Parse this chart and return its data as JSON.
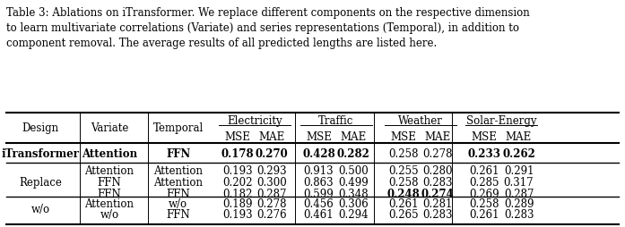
{
  "caption": "Table 3: Ablations on iTransformer. We replace different components on the respective dimension\nto learn multivariate correlations (Variate) and series representations (Temporal), in addition to\ncomponent removal. The average results of all predicted lengths are listed here.",
  "header_groups": [
    "Electricity",
    "Traffic",
    "Weather",
    "Solar-Energy"
  ],
  "subheaders": [
    "MSE",
    "MAE"
  ],
  "col_headers": [
    "Design",
    "Variate",
    "Temporal",
    "MSE",
    "MAE",
    "MSE",
    "MAE",
    "MSE",
    "MAE",
    "MSE",
    "MAE"
  ],
  "rows": [
    {
      "group": "iTransformer",
      "variate": "Attention",
      "temporal": "FFN",
      "values": [
        "0.178",
        "0.270",
        "0.428",
        "0.282",
        "0.258",
        "0.278",
        "0.233",
        "0.262"
      ],
      "bold": [
        true,
        true,
        true,
        true,
        false,
        false,
        true,
        true
      ],
      "row_bold": true
    },
    {
      "group": "Replace",
      "variate": "Attention",
      "temporal": "Attention",
      "values": [
        "0.193",
        "0.293",
        "0.913",
        "0.500",
        "0.255",
        "0.280",
        "0.261",
        "0.291"
      ],
      "bold": [
        false,
        false,
        false,
        false,
        false,
        false,
        false,
        false
      ],
      "row_bold": false
    },
    {
      "group": "",
      "variate": "FFN",
      "temporal": "Attention",
      "values": [
        "0.202",
        "0.300",
        "0.863",
        "0.499",
        "0.258",
        "0.283",
        "0.285",
        "0.317"
      ],
      "bold": [
        false,
        false,
        false,
        false,
        false,
        false,
        false,
        false
      ],
      "row_bold": false
    },
    {
      "group": "",
      "variate": "FFN",
      "temporal": "FFN",
      "values": [
        "0.182",
        "0.287",
        "0.599",
        "0.348",
        "0.248",
        "0.274",
        "0.269",
        "0.287"
      ],
      "bold": [
        false,
        false,
        false,
        false,
        true,
        true,
        false,
        false
      ],
      "row_bold": false
    },
    {
      "group": "w/o",
      "variate": "Attention",
      "temporal": "w/o",
      "values": [
        "0.189",
        "0.278",
        "0.456",
        "0.306",
        "0.261",
        "0.281",
        "0.258",
        "0.289"
      ],
      "bold": [
        false,
        false,
        false,
        false,
        false,
        false,
        false,
        false
      ],
      "row_bold": false
    },
    {
      "group": "",
      "variate": "w/o",
      "temporal": "FFN",
      "values": [
        "0.193",
        "0.276",
        "0.461",
        "0.294",
        "0.265",
        "0.283",
        "0.261",
        "0.283"
      ],
      "bold": [
        false,
        false,
        false,
        false,
        false,
        false,
        false,
        false
      ],
      "row_bold": false
    }
  ],
  "bg_color": "#ffffff",
  "text_color": "#000000",
  "fontsize_caption": 8.5,
  "fontsize_header": 8.5,
  "fontsize_data": 8.5
}
